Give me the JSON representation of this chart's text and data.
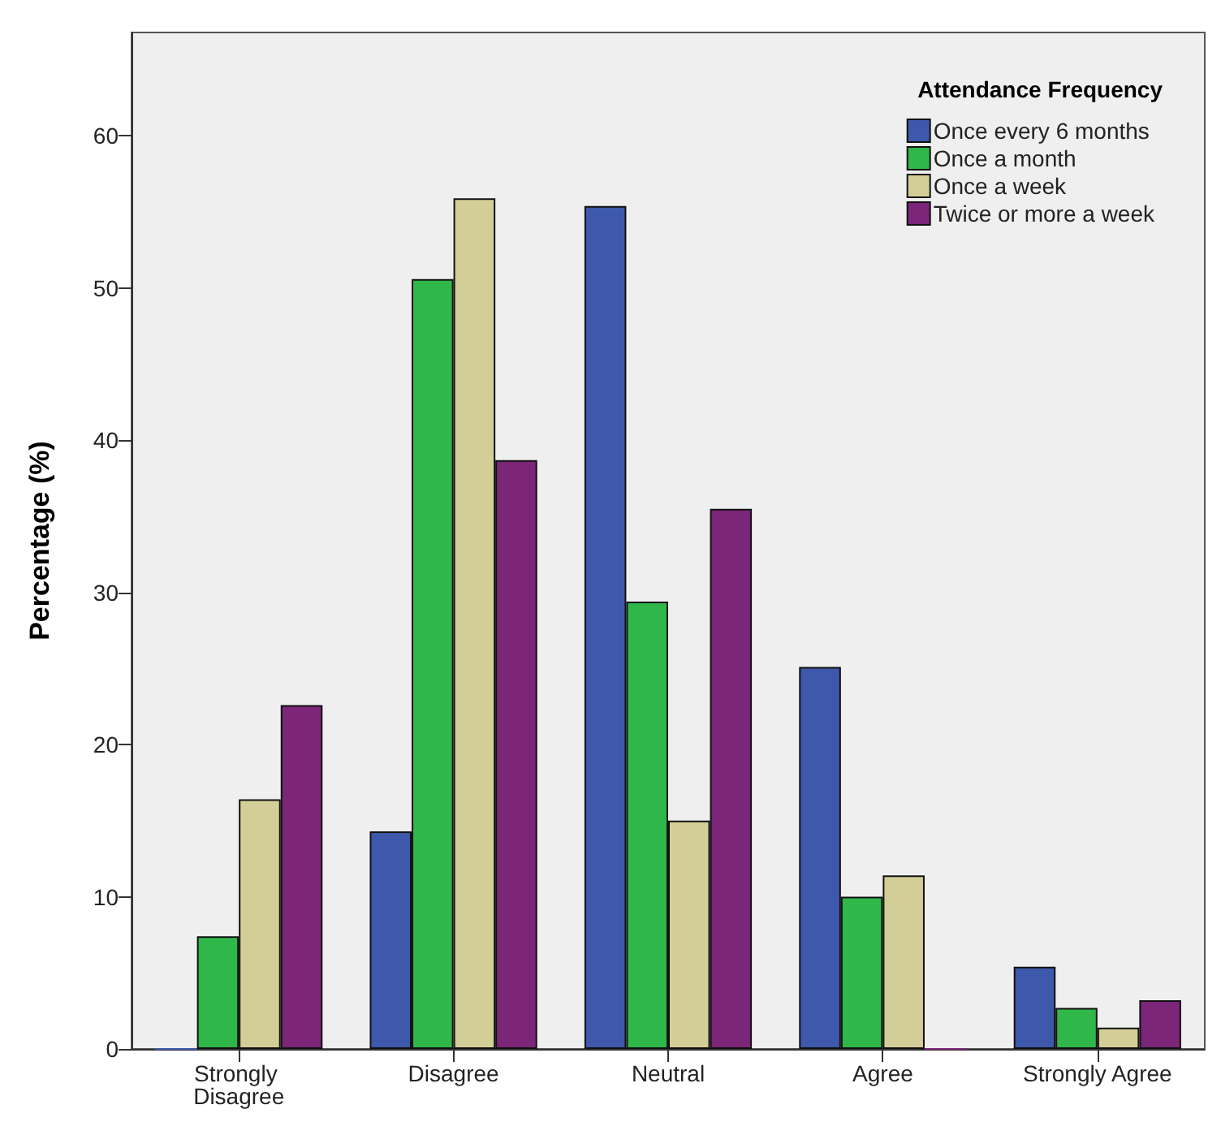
{
  "chart_data": {
    "type": "bar",
    "ylabel": "Percentage (%)",
    "legend_title": "Attendance Frequency",
    "legend": "top right",
    "grid": false,
    "categories": [
      "Strongly Disagree",
      "Disagree",
      "Neutral",
      "Agree",
      "Strongly Agree"
    ],
    "ylim": [
      0,
      66.8
    ],
    "yticks": [
      0,
      10,
      20,
      30,
      40,
      50,
      60
    ],
    "series": [
      {
        "name": "Once every 6 months",
        "color": "#3e58ac",
        "values": [
          0,
          14.3,
          55.4,
          25.1,
          5.4
        ]
      },
      {
        "name": "Once a month",
        "color": "#30b74a",
        "values": [
          7.4,
          50.6,
          29.4,
          10.0,
          2.7
        ]
      },
      {
        "name": "Once a week",
        "color": "#d3ce97",
        "values": [
          16.4,
          55.9,
          15.0,
          11.4,
          1.4
        ]
      },
      {
        "name": "Twice or more a week",
        "color": "#7b2678",
        "values": [
          22.6,
          38.7,
          35.5,
          0,
          3.2
        ]
      }
    ]
  }
}
